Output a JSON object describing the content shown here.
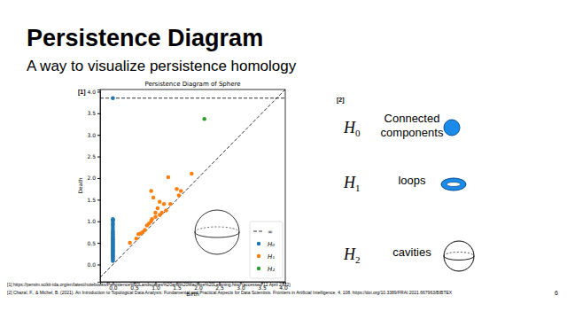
{
  "slide": {
    "title": "Persistence Diagram",
    "subtitle": "A way to visualize persistence homology",
    "chart_ref": "[1]",
    "panel_ref": "[2]",
    "homology": [
      {
        "symbol": "H",
        "subscript": "0",
        "label_lines": [
          "Connected",
          "components"
        ]
      },
      {
        "symbol": "H",
        "subscript": "1",
        "label_lines": [
          "loops"
        ]
      },
      {
        "symbol": "H",
        "subscript": "2",
        "label_lines": [
          "cavities"
        ]
      }
    ],
    "references": [
      "[1] https://persim.scikit-tda.org/en/latest/notebooks/Persistence%20Landscapes%20and%20Machine%20Learning.html (accessed 12 April 2022)",
      "[2] Chazal, F., & Michel, B. (2021). An Introduction to Topological Data Analysis: Fundamental and Practical Aspects for Data Scientists. Frontiers in Artificial Intelligence, 4, 108. https://doi.org/10.3389/FRAI.2021.667963/BIBTEX"
    ],
    "page": "6"
  },
  "chart_data": {
    "type": "scatter",
    "title": "Persistence Diagram of Sphere",
    "x_label": "Birth",
    "y_label": "Death",
    "xlim": [
      -0.3,
      4.05
    ],
    "ylim": [
      -0.4,
      4.05
    ],
    "xticks": [
      {
        "value": 0,
        "label": "0.0"
      },
      {
        "value": 0.5,
        "label": "0.5"
      },
      {
        "value": 1,
        "label": "1.0"
      },
      {
        "value": 1.5,
        "label": "1.5"
      },
      {
        "value": 2,
        "label": "2.0"
      },
      {
        "value": 2.5,
        "label": "2.5"
      },
      {
        "value": 3,
        "label": "3.0"
      },
      {
        "value": 3.5,
        "label": "3.5"
      },
      {
        "value": 4,
        "label": "4.0"
      }
    ],
    "yticks": [
      {
        "value": 0,
        "label": "0.0"
      },
      {
        "value": 0.5,
        "label": "0.5"
      },
      {
        "value": 1,
        "label": "1.0"
      },
      {
        "value": 1.5,
        "label": "1.5"
      },
      {
        "value": 2,
        "label": "2.0"
      },
      {
        "value": 2.5,
        "label": "2.5"
      },
      {
        "value": 3,
        "label": "3.0"
      },
      {
        "value": 3.5,
        "label": "3.5"
      },
      {
        "value": 4,
        "label": "4.0"
      }
    ],
    "grid": false,
    "legend": "lower right",
    "series": [
      {
        "type": "line",
        "line_style": "dashed",
        "color": "#000000",
        "x": [
          -0.3,
          4.05
        ],
        "y": [
          -0.3,
          4.05
        ]
      },
      {
        "name": "∞",
        "type": "line",
        "line_style": "dashed",
        "color": "#000000",
        "x": [
          -0.3,
          4.05
        ],
        "y": [
          3.85,
          3.85
        ]
      },
      {
        "name": "H₀",
        "type": "scatter",
        "marker": "circle",
        "color": "#1f77b4",
        "x": [
          0,
          0,
          0,
          0,
          0,
          0,
          0,
          0,
          0,
          0,
          0,
          0,
          0,
          0,
          0,
          0,
          0,
          0,
          0,
          0,
          0,
          0,
          0,
          0,
          0,
          0,
          0,
          0,
          0,
          0,
          0,
          0,
          0,
          0
        ],
        "y": [
          0.08,
          0.12,
          0.15,
          0.18,
          0.2,
          0.23,
          0.26,
          0.28,
          0.3,
          0.33,
          0.35,
          0.38,
          0.4,
          0.43,
          0.45,
          0.48,
          0.5,
          0.53,
          0.55,
          0.58,
          0.6,
          0.63,
          0.66,
          0.7,
          0.73,
          0.76,
          0.8,
          0.85,
          0.9,
          0.95,
          1.0,
          1.03,
          1.05,
          3.85
        ]
      },
      {
        "name": "H₁",
        "type": "scatter",
        "marker": "circle",
        "color": "#ff7f0e",
        "x": [
          0.4,
          0.55,
          0.6,
          0.65,
          0.7,
          0.75,
          0.8,
          0.85,
          0.9,
          0.92,
          0.9,
          0.95,
          1.0,
          1.0,
          1.05,
          1.1,
          1.1,
          1.15,
          1.2,
          1.25,
          1.3,
          1.35,
          1.5,
          1.55,
          1.6,
          1.85
        ],
        "y": [
          0.5,
          0.6,
          0.7,
          0.72,
          0.75,
          0.8,
          0.9,
          0.95,
          1.0,
          1.05,
          1.7,
          1.55,
          1.1,
          1.2,
          1.3,
          1.15,
          1.45,
          1.2,
          1.4,
          1.25,
          2.02,
          1.4,
          1.75,
          1.6,
          1.7,
          2.1
        ]
      },
      {
        "name": "H₂",
        "type": "scatter",
        "marker": "circle",
        "color": "#2ca02c",
        "x": [
          2.15
        ],
        "y": [
          3.37
        ]
      }
    ]
  }
}
